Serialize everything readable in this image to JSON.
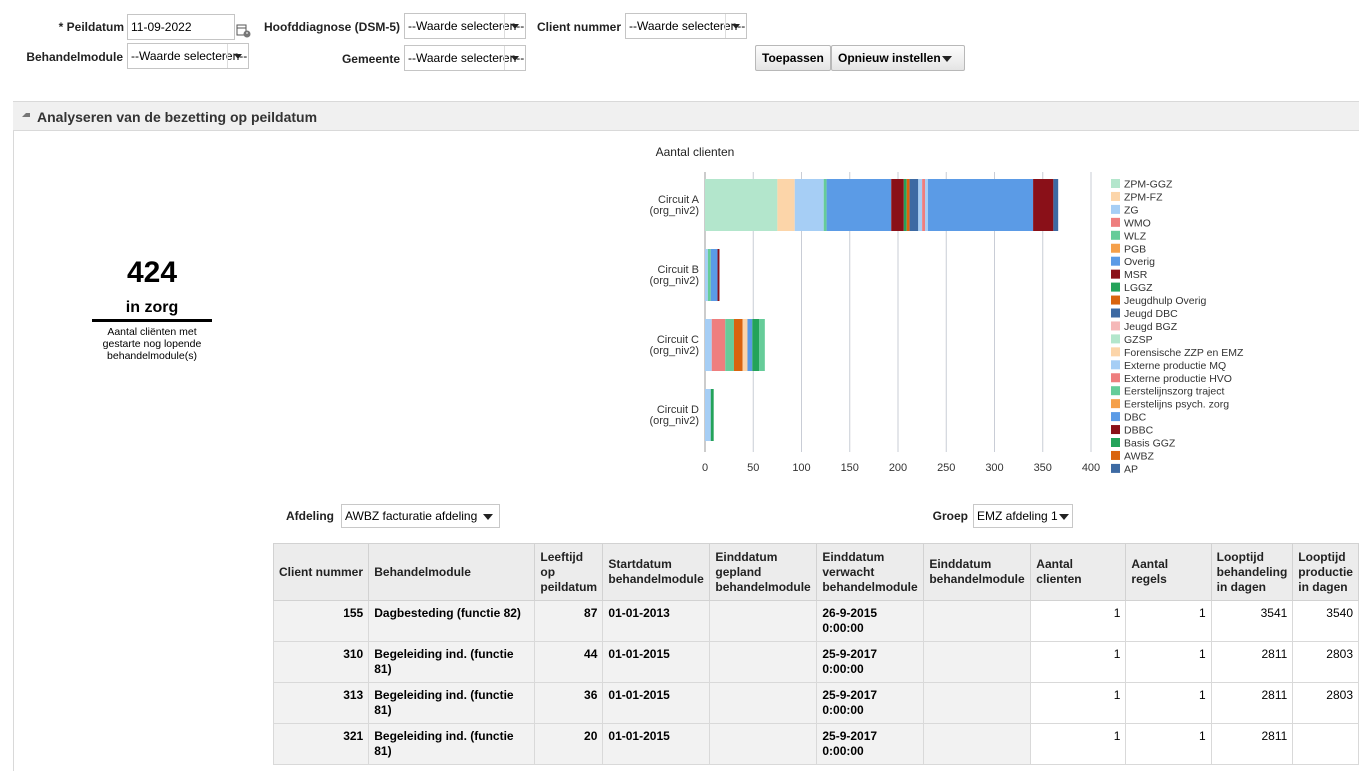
{
  "filters": {
    "peildatum_label": "* Peildatum",
    "peildatum_value": "11-09-2022",
    "hoofddiagnose_label": "Hoofddiagnose (DSM-5)",
    "hoofddiagnose_value": "--Waarde selecteren--",
    "client_label": "Client nummer",
    "client_value": "--Waarde selecteren--",
    "behandelmodule_label": "Behandelmodule",
    "behandelmodule_value": "--Waarde selecteren--",
    "gemeente_label": "Gemeente",
    "gemeente_value": "--Waarde selecteren--",
    "apply_label": "Toepassen",
    "reset_label": "Opnieuw instellen"
  },
  "panel": {
    "title": "Analyseren van de bezetting op peildatum"
  },
  "kpi": {
    "value": "424",
    "unit": "in zorg",
    "description": "Aantal cliënten met gestarte nog lopende behandelmodule(s)"
  },
  "chart_data": {
    "type": "bar",
    "orientation": "horizontal",
    "stacked": true,
    "title": "Aantal clienten",
    "categories": [
      [
        "Circuit A",
        "(org_niv2)"
      ],
      [
        "Circuit B",
        "(org_niv2)"
      ],
      [
        "Circuit C",
        "(org_niv2)"
      ],
      [
        "Circuit D",
        "(org_niv2)"
      ]
    ],
    "xlim": [
      0,
      400
    ],
    "xticks": [
      0,
      50,
      100,
      150,
      200,
      250,
      300,
      350,
      400
    ],
    "grid": true,
    "legend_position": "right",
    "legend": [
      {
        "name": "ZPM-GGZ",
        "color": "#b3e6cc"
      },
      {
        "name": "ZPM-FZ",
        "color": "#fcd5a9"
      },
      {
        "name": "ZG",
        "color": "#a6cef5"
      },
      {
        "name": "WMO",
        "color": "#ee7e7e"
      },
      {
        "name": "WLZ",
        "color": "#66cc99"
      },
      {
        "name": "PGB",
        "color": "#f5a04a"
      },
      {
        "name": "Overig",
        "color": "#5b9be6"
      },
      {
        "name": "MSR",
        "color": "#8a1018"
      },
      {
        "name": "LGGZ",
        "color": "#24a35a"
      },
      {
        "name": "Jeugdhulp Overig",
        "color": "#d9640e"
      },
      {
        "name": "Jeugd DBC",
        "color": "#3d6aa3"
      },
      {
        "name": "Jeugd BGZ",
        "color": "#f5b8b8"
      },
      {
        "name": "GZSP",
        "color": "#b3e6cc"
      },
      {
        "name": "Forensische ZZP en EMZ",
        "color": "#fcd5a9"
      },
      {
        "name": "Externe productie MQ",
        "color": "#a6cef5"
      },
      {
        "name": "Externe productie HVO",
        "color": "#ee7e7e"
      },
      {
        "name": "Eerstelijnszorg traject",
        "color": "#66cc99"
      },
      {
        "name": "Eerstelijns psych. zorg",
        "color": "#f5a04a"
      },
      {
        "name": "DBC",
        "color": "#5b9be6"
      },
      {
        "name": "DBBC",
        "color": "#8a1018"
      },
      {
        "name": "Basis GGZ",
        "color": "#24a35a"
      },
      {
        "name": "AWBZ",
        "color": "#d9640e"
      },
      {
        "name": "AP",
        "color": "#3d6aa3"
      }
    ],
    "bars": [
      {
        "category": "Circuit A",
        "segments": [
          {
            "value": 75,
            "color": "#b3e6cc"
          },
          {
            "value": 18,
            "color": "#fcd5a9"
          },
          {
            "value": 30,
            "color": "#a6cef5"
          },
          {
            "value": 3,
            "color": "#66cc99"
          },
          {
            "value": 67,
            "color": "#5b9be6"
          },
          {
            "value": 13,
            "color": "#8a1018"
          },
          {
            "value": 3,
            "color": "#24a35a"
          },
          {
            "value": 3,
            "color": "#d9640e"
          },
          {
            "value": 9,
            "color": "#3d6aa3"
          },
          {
            "value": 4,
            "color": "#a6cef5"
          },
          {
            "value": 3,
            "color": "#ee7e7e"
          },
          {
            "value": 3,
            "color": "#a6cef5"
          },
          {
            "value": 109,
            "color": "#5b9be6"
          },
          {
            "value": 21,
            "color": "#8a1018"
          },
          {
            "value": 5,
            "color": "#3d6aa3"
          }
        ]
      },
      {
        "category": "Circuit B",
        "segments": [
          {
            "value": 3,
            "color": "#a6cef5"
          },
          {
            "value": 3,
            "color": "#66cc99"
          },
          {
            "value": 7,
            "color": "#5b9be6"
          },
          {
            "value": 2,
            "color": "#8a1018"
          }
        ]
      },
      {
        "category": "Circuit C",
        "segments": [
          {
            "value": 7,
            "color": "#a6cef5"
          },
          {
            "value": 14,
            "color": "#ee7e7e"
          },
          {
            "value": 9,
            "color": "#66cc99"
          },
          {
            "value": 9,
            "color": "#d9640e"
          },
          {
            "value": 5,
            "color": "#fcd5a9"
          },
          {
            "value": 5,
            "color": "#5b9be6"
          },
          {
            "value": 7,
            "color": "#24a35a"
          },
          {
            "value": 6,
            "color": "#66cc99"
          }
        ]
      },
      {
        "category": "Circuit D",
        "segments": [
          {
            "value": 6,
            "color": "#a6cef5"
          },
          {
            "value": 3,
            "color": "#24a35a"
          }
        ]
      }
    ]
  },
  "table_filters": {
    "afdeling_label": "Afdeling",
    "afdeling_value": "AWBZ facturatie afdeling",
    "groep_label": "Groep",
    "groep_value": "EMZ afdeling 1"
  },
  "table": {
    "columns": [
      "Client nummer",
      "Behandelmodule",
      "Leeftijd op peildatum",
      "Startdatum behandelmodule",
      "Einddatum gepland behandelmodule",
      "Einddatum verwacht behandelmodule",
      "Einddatum behandelmodule",
      "Aantal clienten",
      "Aantal regels",
      "Looptijd behandeling in dagen",
      "Looptijd productie in dagen"
    ],
    "rows": [
      {
        "client": "155",
        "module": "Dagbesteding (functie 82)",
        "age": "87",
        "start": "01-01-2013",
        "gepland": "",
        "verwacht": "26-9-2015 0:00:00",
        "einde": "",
        "clienten": "1",
        "regels": "1",
        "looptijd_beh": "3541",
        "looptijd_prod": "3540"
      },
      {
        "client": "310",
        "module": "Begeleiding ind. (functie 81)",
        "age": "44",
        "start": "01-01-2015",
        "gepland": "",
        "verwacht": "25-9-2017 0:00:00",
        "einde": "",
        "clienten": "1",
        "regels": "1",
        "looptijd_beh": "2811",
        "looptijd_prod": "2803"
      },
      {
        "client": "313",
        "module": "Begeleiding ind. (functie 81)",
        "age": "36",
        "start": "01-01-2015",
        "gepland": "",
        "verwacht": "25-9-2017 0:00:00",
        "einde": "",
        "clienten": "1",
        "regels": "1",
        "looptijd_beh": "2811",
        "looptijd_prod": "2803"
      },
      {
        "client": "321",
        "module": "Begeleiding ind. (functie 81)",
        "age": "20",
        "start": "01-01-2015",
        "gepland": "",
        "verwacht": "25-9-2017 0:00:00",
        "einde": "",
        "clienten": "1",
        "regels": "1",
        "looptijd_beh": "2811",
        "looptijd_prod": ""
      }
    ]
  }
}
